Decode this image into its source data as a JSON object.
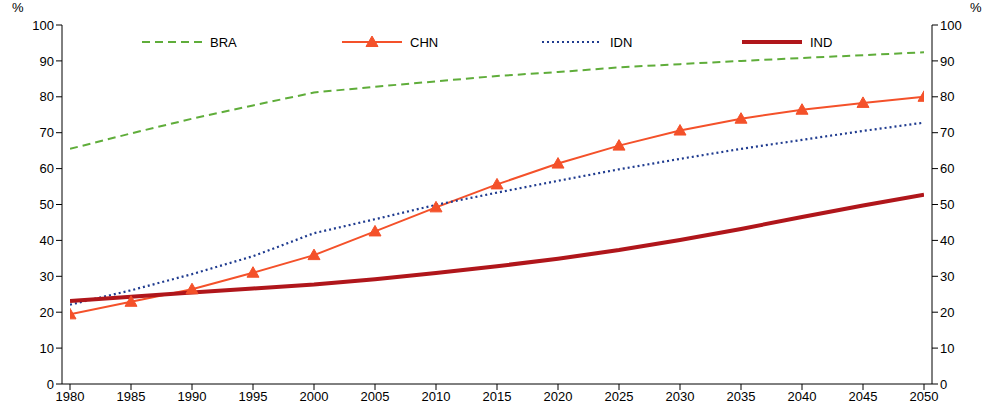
{
  "chart_data": {
    "type": "line",
    "y_label": "%",
    "x": [
      1980,
      1985,
      1990,
      1995,
      2000,
      2005,
      2010,
      2015,
      2020,
      2025,
      2030,
      2035,
      2040,
      2045,
      2050
    ],
    "xlim": [
      1980,
      2050
    ],
    "xticks": [
      1980,
      1985,
      1990,
      1995,
      2000,
      2005,
      2010,
      2015,
      2020,
      2025,
      2030,
      2035,
      2040,
      2045,
      2050
    ],
    "ylim": [
      0,
      100
    ],
    "yticks": [
      0,
      10,
      20,
      30,
      40,
      50,
      60,
      70,
      80,
      90,
      100
    ],
    "grid": false,
    "legend": "top",
    "series": [
      {
        "name": "BRA",
        "color": "#5fad3a",
        "line_style": "dashed",
        "marker": "none",
        "values": [
          65.5,
          69.8,
          73.9,
          77.6,
          81.2,
          82.8,
          84.3,
          85.8,
          86.9,
          88.2,
          89.1,
          90.0,
          90.8,
          91.6,
          92.4
        ]
      },
      {
        "name": "CHN",
        "color": "#f4512a",
        "line_style": "solid",
        "marker": "triangle",
        "values": [
          19.4,
          22.9,
          26.4,
          31.0,
          35.9,
          42.5,
          49.2,
          55.6,
          61.4,
          66.4,
          70.6,
          73.9,
          76.4,
          78.3,
          80.0
        ]
      },
      {
        "name": "IDN",
        "color": "#1f3b8f",
        "line_style": "dotted",
        "marker": "none",
        "values": [
          22.1,
          26.1,
          30.6,
          35.6,
          42.0,
          45.9,
          49.9,
          53.3,
          56.6,
          59.8,
          62.7,
          65.5,
          68.0,
          70.5,
          72.8
        ]
      },
      {
        "name": "IND",
        "color": "#b0161b",
        "line_style": "solid",
        "marker": "none",
        "values": [
          23.1,
          24.3,
          25.5,
          26.6,
          27.7,
          29.2,
          30.9,
          32.8,
          34.9,
          37.3,
          40.1,
          43.2,
          46.5,
          49.7,
          52.7
        ]
      }
    ]
  }
}
